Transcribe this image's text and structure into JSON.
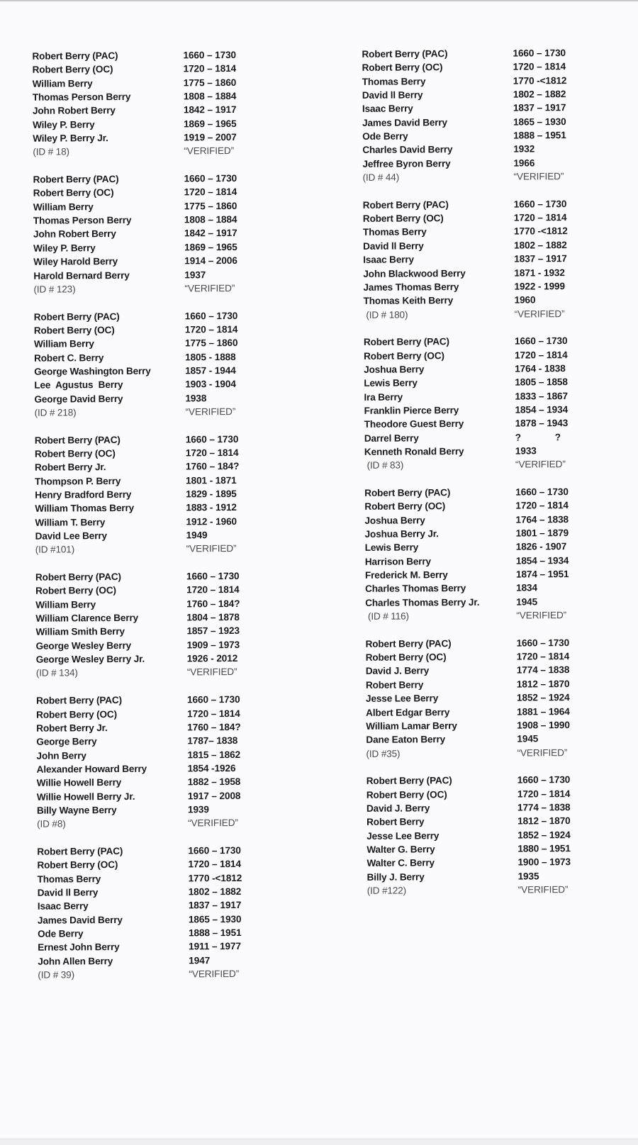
{
  "columns": [
    {
      "groups": [
        {
          "people": [
            {
              "name": "Robert Berry (PAC)",
              "dates": "1660 – 1730"
            },
            {
              "name": "Robert Berry (OC)",
              "dates": "1720 – 1814"
            },
            {
              "name": "William Berry",
              "dates": "1775 – 1860"
            },
            {
              "name": "Thomas Person Berry",
              "dates": "1808 – 1884"
            },
            {
              "name": "John Robert Berry",
              "dates": "1842 – 1917"
            },
            {
              "name": "Wiley P. Berry",
              "dates": "1869 – 1965"
            },
            {
              "name": "Wiley P. Berry Jr.",
              "dates": "1919 – 2007"
            }
          ],
          "id": "(ID # 18)",
          "status": "“VERIFIED”"
        },
        {
          "people": [
            {
              "name": "Robert Berry (PAC)",
              "dates": "1660 – 1730"
            },
            {
              "name": "Robert Berry (OC)",
              "dates": "1720 – 1814"
            },
            {
              "name": "William Berry",
              "dates": "1775 – 1860"
            },
            {
              "name": "Thomas Person Berry",
              "dates": "1808 – 1884"
            },
            {
              "name": "John Robert Berry",
              "dates": "1842 – 1917"
            },
            {
              "name": "Wiley P. Berry",
              "dates": "1869 – 1965"
            },
            {
              "name": "Wiley Harold Berry",
              "dates": "1914 – 2006"
            },
            {
              "name": "Harold Bernard Berry",
              "dates": "1937"
            }
          ],
          "id": "(ID # 123)",
          "status": "“VERIFIED”"
        },
        {
          "people": [
            {
              "name": "Robert Berry (PAC)",
              "dates": "1660 – 1730"
            },
            {
              "name": "Robert Berry (OC)",
              "dates": "1720 – 1814"
            },
            {
              "name": "William Berry",
              "dates": "1775 – 1860"
            },
            {
              "name": "Robert C. Berry",
              "dates": "1805 - 1888"
            },
            {
              "name": "George Washington Berry",
              "dates": "1857 - 1944"
            },
            {
              "name": "Lee  Agustus  Berry",
              "dates": "1903 - 1904"
            },
            {
              "name": "George David Berry",
              "dates": "1938"
            }
          ],
          "id": "(ID # 218)",
          "status": "“VERIFIED”"
        },
        {
          "people": [
            {
              "name": "Robert Berry (PAC)",
              "dates": "1660 – 1730"
            },
            {
              "name": "Robert Berry (OC)",
              "dates": "1720 – 1814"
            },
            {
              "name": "Robert Berry Jr.",
              "dates": "1760 – 184?"
            },
            {
              "name": "Thompson P. Berry",
              "dates": "1801 - 1871"
            },
            {
              "name": "Henry Bradford Berry",
              "dates": "1829 - 1895"
            },
            {
              "name": "William Thomas Berry",
              "dates": "1883 - 1912"
            },
            {
              "name": "William T. Berry",
              "dates": "1912 - 1960"
            },
            {
              "name": "David Lee Berry",
              "dates": "1949"
            }
          ],
          "id": "(ID #101)",
          "status": "“VERIFIED”"
        },
        {
          "people": [
            {
              "name": "Robert Berry (PAC)",
              "dates": "1660 – 1730"
            },
            {
              "name": "Robert Berry (OC)",
              "dates": "1720 – 1814"
            },
            {
              "name": "William Berry",
              "dates": "1760 – 184?"
            },
            {
              "name": "William Clarence Berry",
              "dates": "1804 – 1878"
            },
            {
              "name": "William Smith Berry",
              "dates": "1857 – 1923"
            },
            {
              "name": "George Wesley Berry",
              "dates": "1909 – 1973"
            },
            {
              "name": "George Wesley Berry Jr.",
              "dates": "1926 - 2012"
            }
          ],
          "id": "(ID # 134)",
          "status": "“VERIFIED”"
        },
        {
          "people": [
            {
              "name": "Robert Berry (PAC)",
              "dates": "1660 – 1730"
            },
            {
              "name": "Robert Berry (OC)",
              "dates": "1720 – 1814"
            },
            {
              "name": "Robert Berry Jr.",
              "dates": "1760 – 184?"
            },
            {
              "name": "George Berry",
              "dates": "1787– 1838"
            },
            {
              "name": "John Berry",
              "dates": "1815 – 1862"
            },
            {
              "name": "Alexander Howard Berry",
              "dates": "1854 -1926"
            },
            {
              "name": "Willie Howell Berry",
              "dates": "1882 – 1958"
            },
            {
              "name": "Willie Howell Berry Jr.",
              "dates": "1917 – 2008"
            },
            {
              "name": "Billy Wayne Berry",
              "dates": "1939"
            }
          ],
          "id": "(ID #8)",
          "status": "“VERIFIED”"
        },
        {
          "people": [
            {
              "name": "Robert Berry (PAC)",
              "dates": "1660 – 1730"
            },
            {
              "name": "Robert Berry (OC)",
              "dates": "1720 – 1814"
            },
            {
              "name": "Thomas Berry",
              "dates": "1770 -<1812"
            },
            {
              "name": "David ll Berry",
              "dates": "1802 – 1882"
            },
            {
              "name": "Isaac Berry",
              "dates": "1837 – 1917"
            },
            {
              "name": "James David Berry",
              "dates": "1865 – 1930"
            },
            {
              "name": "Ode Berry",
              "dates": "1888 – 1951"
            },
            {
              "name": "Ernest John Berry",
              "dates": "1911 – 1977"
            },
            {
              "name": "John Allen Berry",
              "dates": "1947"
            }
          ],
          "id": "(ID # 39)",
          "status": "“VERIFIED”"
        }
      ]
    },
    {
      "groups": [
        {
          "people": [
            {
              "name": "Robert Berry (PAC)",
              "dates": "1660 – 1730"
            },
            {
              "name": "Robert Berry (OC)",
              "dates": "1720 – 1814"
            },
            {
              "name": "Thomas Berry",
              "dates": "1770 -<1812"
            },
            {
              "name": "David ll Berry",
              "dates": "1802 – 1882"
            },
            {
              "name": "Isaac Berry",
              "dates": "1837 – 1917"
            },
            {
              "name": "James David Berry",
              "dates": "1865 – 1930"
            },
            {
              "name": "Ode Berry",
              "dates": "1888 – 1951"
            },
            {
              "name": "Charles David Berry",
              "dates": "1932"
            },
            {
              "name": "Jeffree Byron Berry",
              "dates": "1966"
            }
          ],
          "id": "(ID # 44)",
          "status": "“VERIFIED”"
        },
        {
          "people": [
            {
              "name": "Robert Berry (PAC)",
              "dates": "1660 – 1730"
            },
            {
              "name": "Robert Berry (OC)",
              "dates": "1720 – 1814"
            },
            {
              "name": "Thomas Berry",
              "dates": "1770 -<1812"
            },
            {
              "name": "David ll Berry",
              "dates": "1802 – 1882"
            },
            {
              "name": "Isaac Berry",
              "dates": "1837 – 1917"
            },
            {
              "name": "John Blackwood Berry",
              "dates": "1871 - 1932"
            },
            {
              "name": "James Thomas Berry",
              "dates": "1922 - 1999"
            },
            {
              "name": "Thomas Keith Berry",
              "dates": "1960"
            }
          ],
          "id": " (ID # 180)",
          "status": "“VERIFIED”"
        },
        {
          "people": [
            {
              "name": "Robert Berry (PAC)",
              "dates": "1660 – 1730"
            },
            {
              "name": "Robert Berry (OC)",
              "dates": "1720 – 1814"
            },
            {
              "name": "Joshua Berry",
              "dates": "1764 - 1838"
            },
            {
              "name": "Lewis Berry",
              "dates": "1805 – 1858"
            },
            {
              "name": "Ira Berry",
              "dates": "1833 – 1867"
            },
            {
              "name": "Franklin Pierce Berry",
              "dates": "1854 – 1934"
            },
            {
              "name": "Theodore Guest Berry",
              "dates": "1878 – 1943"
            },
            {
              "name": "Darrel Berry",
              "dates": "?             ?"
            },
            {
              "name": "Kenneth Ronald Berry",
              "dates": "1933"
            }
          ],
          "id": " (ID # 83)",
          "status": "“VERIFIED”"
        },
        {
          "people": [
            {
              "name": "Robert Berry (PAC)",
              "dates": "1660 – 1730"
            },
            {
              "name": "Robert Berry (OC)",
              "dates": "1720 – 1814"
            },
            {
              "name": "Joshua Berry",
              "dates": "1764 – 1838"
            },
            {
              "name": "Joshua Berry Jr.",
              "dates": "1801 – 1879"
            },
            {
              "name": "Lewis Berry",
              "dates": "1826 - 1907"
            },
            {
              "name": "Harrison Berry",
              "dates": "1854 – 1934"
            },
            {
              "name": "Frederick M. Berry",
              "dates": "1874 – 1951"
            },
            {
              "name": "Charles Thomas Berry",
              "dates": "1834"
            },
            {
              "name": "Charles Thomas Berry Jr.",
              "dates": "1945"
            }
          ],
          "id": " (ID # 116)",
          "status": "“VERIFIED”"
        },
        {
          "people": [
            {
              "name": "Robert Berry (PAC)",
              "dates": "1660 – 1730"
            },
            {
              "name": "Robert Berry (OC)",
              "dates": "1720 – 1814"
            },
            {
              "name": "David J. Berry",
              "dates": "1774 – 1838"
            },
            {
              "name": "Robert Berry",
              "dates": "1812 – 1870"
            },
            {
              "name": "Jesse Lee Berry",
              "dates": "1852 – 1924"
            },
            {
              "name": "Albert Edgar Berry",
              "dates": "1881 – 1964"
            },
            {
              "name": "William Lamar Berry",
              "dates": "1908 – 1990"
            },
            {
              "name": "Dane Eaton Berry",
              "dates": "1945"
            }
          ],
          "id": "(ID #35)",
          "status": "“VERIFIED”"
        },
        {
          "people": [
            {
              "name": "Robert Berry (PAC)",
              "dates": "1660 – 1730"
            },
            {
              "name": "Robert Berry (OC)",
              "dates": "1720 – 1814"
            },
            {
              "name": "David J. Berry",
              "dates": "1774 – 1838"
            },
            {
              "name": "Robert Berry",
              "dates": "1812 – 1870"
            },
            {
              "name": "Jesse Lee Berry",
              "dates": "1852 – 1924"
            },
            {
              "name": "Walter G. Berry",
              "dates": "1880 – 1951"
            },
            {
              "name": "Walter C. Berry",
              "dates": "1900 – 1973"
            },
            {
              "name": "Billy J. Berry",
              "dates": "1935"
            }
          ],
          "id": "(ID #122)",
          "status": "“VERIFIED”"
        }
      ]
    }
  ]
}
